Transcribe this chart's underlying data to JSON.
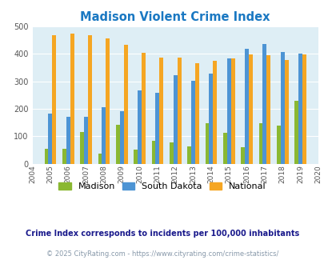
{
  "title": "Madison Violent Crime Index",
  "years": [
    2004,
    2005,
    2006,
    2007,
    2008,
    2009,
    2010,
    2011,
    2012,
    2013,
    2014,
    2015,
    2016,
    2017,
    2018,
    2019,
    2020
  ],
  "madison": [
    null,
    53,
    53,
    115,
    37,
    142,
    50,
    82,
    77,
    62,
    148,
    112,
    60,
    148,
    138,
    228,
    null
  ],
  "south_dakota": [
    null,
    183,
    172,
    172,
    206,
    191,
    267,
    257,
    322,
    301,
    328,
    384,
    418,
    435,
    406,
    400,
    null
  ],
  "national": [
    null,
    469,
    473,
    467,
    455,
    432,
    405,
    387,
    387,
    367,
    376,
    383,
    398,
    394,
    379,
    399,
    null
  ],
  "madison_color": "#8ab832",
  "sd_color": "#4d94d4",
  "national_color": "#f5a623",
  "bg_color": "#deeef5",
  "title_color": "#1a78c2",
  "ylabel_max": 500,
  "yticks": [
    0,
    100,
    200,
    300,
    400,
    500
  ],
  "subtitle": "Crime Index corresponds to incidents per 100,000 inhabitants",
  "footer": "© 2025 CityRating.com - https://www.cityrating.com/crime-statistics/",
  "subtitle_color": "#1a1a8c",
  "footer_color": "#8899aa",
  "legend_labels": [
    "Madison",
    "South Dakota",
    "National"
  ]
}
